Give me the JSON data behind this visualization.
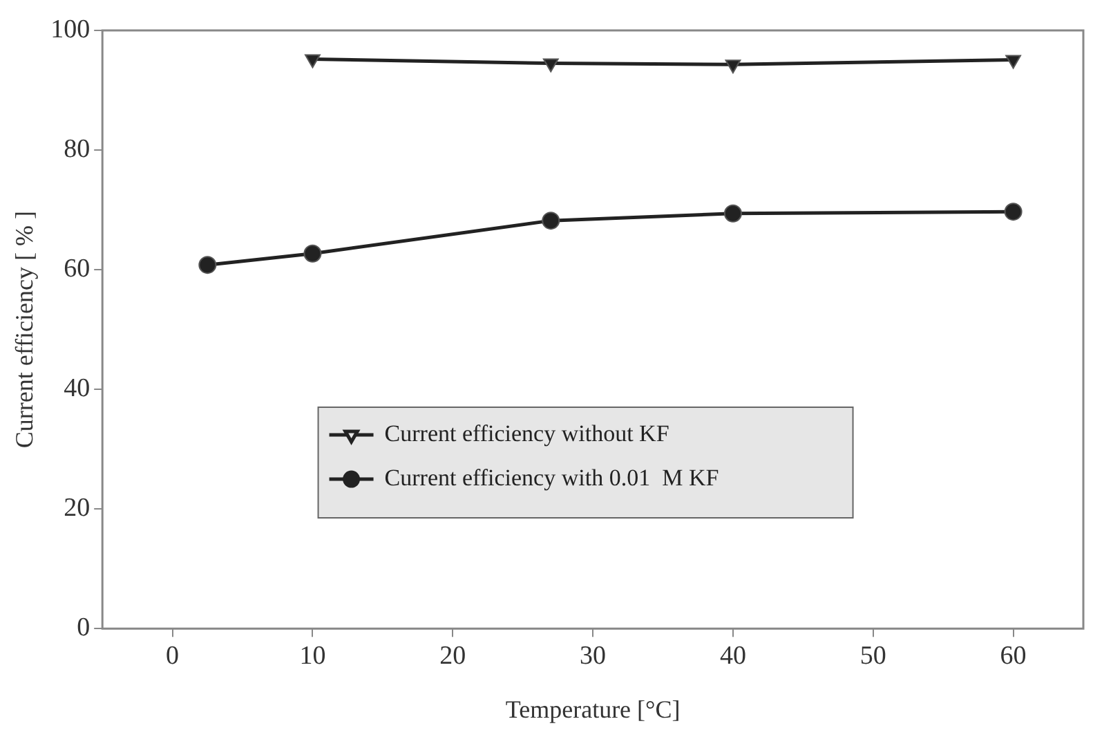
{
  "chart_data": {
    "type": "line",
    "xlabel": "Temperature [°C]",
    "ylabel": "Current efficiency [ % ]",
    "xlim": [
      -5,
      65
    ],
    "xticks": [
      0,
      10,
      20,
      30,
      40,
      50,
      60
    ],
    "ylim": [
      0,
      100
    ],
    "yticks": [
      0,
      20,
      40,
      60,
      80,
      100
    ],
    "grid": false,
    "legend": "center",
    "line_style": "solid",
    "series": [
      {
        "name": "Current efficiency without KF",
        "color": "#222222",
        "marker": "triangle",
        "x": [
          10,
          27,
          40,
          60
        ],
        "values": [
          95.2,
          94.5,
          94.3,
          95.1
        ]
      },
      {
        "name": "Current efficiency with 0.01  M KF",
        "color": "#222222",
        "marker": "circle",
        "x": [
          2.5,
          10,
          27,
          40,
          60
        ],
        "values": [
          60.8,
          62.7,
          68.2,
          69.4,
          69.7
        ]
      }
    ]
  }
}
